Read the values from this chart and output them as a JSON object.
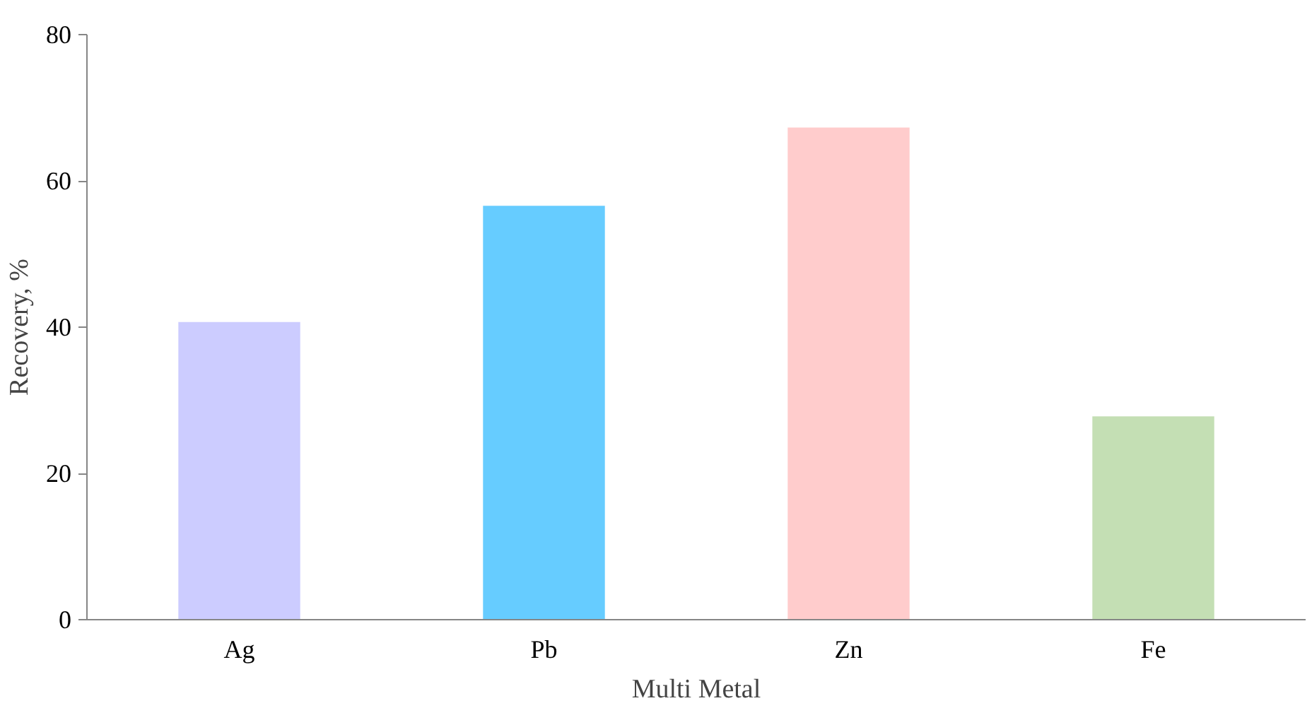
{
  "chart_data": {
    "type": "bar",
    "xlabel": "Multi Metal",
    "ylabel": "Recovery, %",
    "categories": [
      "Ag",
      "Pb",
      "Zn",
      "Fe"
    ],
    "values": [
      40.7,
      56.6,
      67.3,
      27.8
    ],
    "colors": [
      "#ccccff",
      "#66ccff",
      "#ffcccc",
      "#c4dfb4"
    ],
    "ylim": [
      0,
      80
    ],
    "yticks": [
      0,
      20,
      40,
      60,
      80
    ],
    "grid": false
  }
}
